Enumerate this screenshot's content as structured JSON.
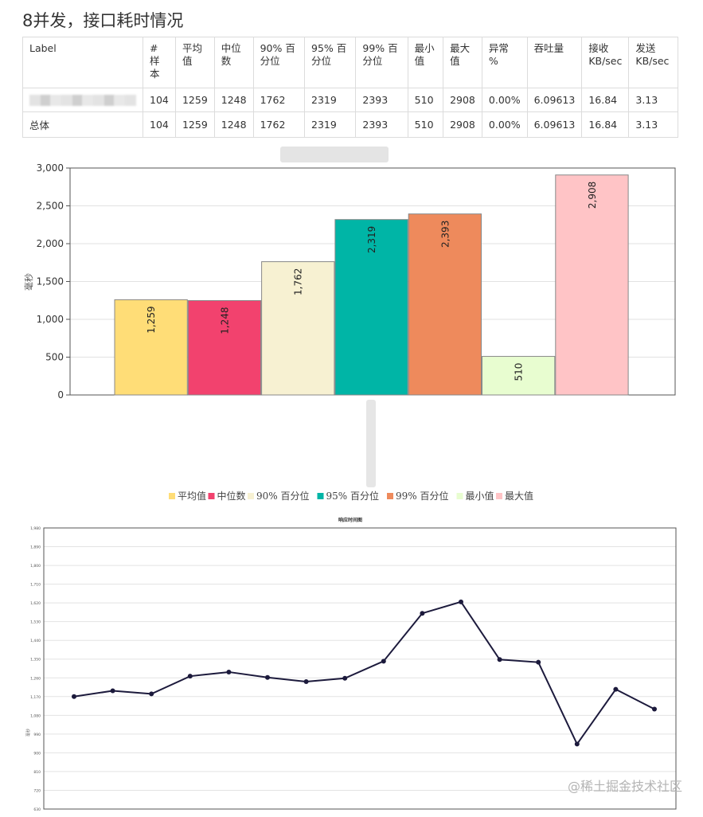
{
  "page": {
    "title": "8并发，接口耗时情况",
    "watermark": "@稀土掘金技术社区"
  },
  "table": {
    "headers": [
      "Label",
      "#\n样\n本",
      "平均\n值",
      "中位\n数",
      "90% 百\n分位",
      "95% 百\n分位",
      "99% 百\n分位",
      "最小\n值",
      "最大\n值",
      "异常\n%",
      "吞吐量",
      "接收\nKB/sec",
      "发送\nKB/sec"
    ],
    "rows": [
      [
        "",
        "104",
        "1259",
        "1248",
        "1762",
        "2319",
        "2393",
        "510",
        "2908",
        "0.00%",
        "6.09613",
        "16.84",
        "3.13"
      ],
      [
        "总体",
        "104",
        "1259",
        "1248",
        "1762",
        "2319",
        "2393",
        "510",
        "2908",
        "0.00%",
        "6.09613",
        "16.84",
        "3.13"
      ]
    ]
  },
  "chart_data": [
    {
      "type": "bar",
      "title": "接口",
      "ylabel": "毫秒",
      "ylim": [
        0,
        3000
      ],
      "yticks": [
        0,
        500,
        1000,
        1500,
        2000,
        2500,
        3000
      ],
      "ytick_labels": [
        "0",
        "500",
        "1,000",
        "1,500",
        "2,000",
        "2,500",
        "3,000"
      ],
      "grid": true,
      "legend": "bottom",
      "series": [
        {
          "name": "平均值",
          "value": 1259,
          "label": "1,259",
          "color": "#FFDD77"
        },
        {
          "name": "中位数",
          "value": 1248,
          "label": "1,248",
          "color": "#F2426E"
        },
        {
          "name": "90% 百分位",
          "value": 1762,
          "label": "1,762",
          "color": "#F7F1D2"
        },
        {
          "name": "95% 百分位",
          "value": 2319,
          "label": "2,319",
          "color": "#00B5A6"
        },
        {
          "name": "99% 百分位",
          "value": 2393,
          "label": "2,393",
          "color": "#EE8A5C"
        },
        {
          "name": "最小值",
          "value": 510,
          "label": "510",
          "color": "#E8FDD0"
        },
        {
          "name": "最大值",
          "value": 2908,
          "label": "2,908",
          "color": "#FFC4C6"
        }
      ]
    },
    {
      "type": "line",
      "title": "响应时间图",
      "ylabel": "毫秒",
      "ylim": [
        630,
        1980
      ],
      "yticks": [
        630,
        720,
        810,
        900,
        990,
        1080,
        1170,
        1260,
        1350,
        1440,
        1530,
        1620,
        1710,
        1800,
        1890,
        1980
      ],
      "ytick_labels": [
        "630",
        "720",
        "810",
        "900",
        "990",
        "1,080",
        "1,170",
        "1,260",
        "1,350",
        "1,440",
        "1,530",
        "1,620",
        "1,710",
        "1,800",
        "1,890",
        "1,980"
      ],
      "grid": true,
      "color": "#1C1A3C",
      "values": [
        1170,
        1198,
        1183,
        1268,
        1288,
        1262,
        1242,
        1258,
        1340,
        1570,
        1625,
        1348,
        1335,
        942,
        1205,
        1110
      ]
    }
  ]
}
